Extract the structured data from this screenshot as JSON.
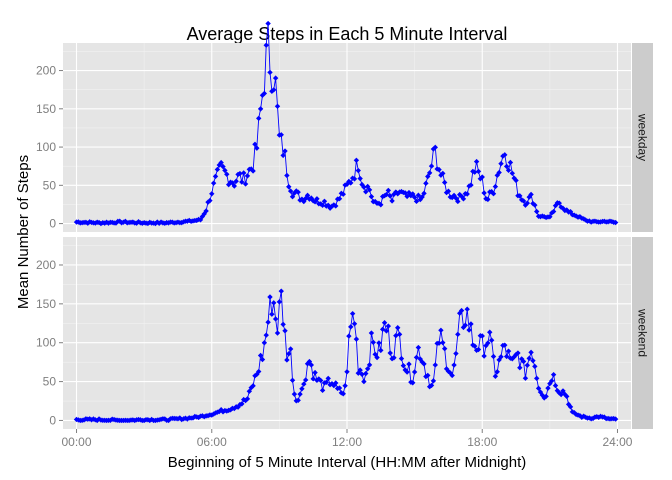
{
  "chart_data": {
    "type": "line",
    "title": "Average Steps in Each 5 Minute Interval",
    "xlabel": "Beginning of 5 Minute Interval (HH:MM after Midnight)",
    "ylabel": "Mean Number of Steps",
    "x_unit": "hours after midnight",
    "xlim": [
      -0.6,
      24.6
    ],
    "ylim": [
      -11,
      236
    ],
    "x_ticks": [
      0,
      6,
      12,
      18,
      24
    ],
    "x_tick_labels": [
      "00:00",
      "06:00",
      "12:00",
      "18:00",
      "24:00"
    ],
    "y_ticks": [
      0,
      50,
      100,
      150,
      200
    ],
    "y_tick_labels": [
      "0",
      "50",
      "100",
      "150",
      "200"
    ],
    "grid": true,
    "line_color": "#0000ff",
    "panel_color": "#e5e5e5",
    "strip_color": "#cccccc",
    "facet_position": "right",
    "panels": [
      {
        "name": "weekday",
        "label": "weekday",
        "keypoints": [
          [
            0,
            2
          ],
          [
            1,
            1
          ],
          [
            2,
            2
          ],
          [
            3,
            1
          ],
          [
            4,
            1
          ],
          [
            5,
            3
          ],
          [
            5.5,
            5
          ],
          [
            5.75,
            18
          ],
          [
            6,
            42
          ],
          [
            6.2,
            58
          ],
          [
            6.4,
            72
          ],
          [
            6.6,
            66
          ],
          [
            6.8,
            58
          ],
          [
            7.0,
            54
          ],
          [
            7.2,
            62
          ],
          [
            7.4,
            57
          ],
          [
            7.6,
            66
          ],
          [
            7.8,
            75
          ],
          [
            8.0,
            100
          ],
          [
            8.2,
            155
          ],
          [
            8.35,
            198
          ],
          [
            8.5,
            232
          ],
          [
            8.6,
            210
          ],
          [
            8.8,
            192
          ],
          [
            9.0,
            110
          ],
          [
            9.2,
            95
          ],
          [
            9.4,
            58
          ],
          [
            9.6,
            40
          ],
          [
            9.8,
            38
          ],
          [
            10,
            32
          ],
          [
            10.3,
            38
          ],
          [
            10.6,
            30
          ],
          [
            11.0,
            28
          ],
          [
            11.3,
            22
          ],
          [
            11.6,
            30
          ],
          [
            12.0,
            48
          ],
          [
            12.3,
            65
          ],
          [
            12.5,
            80
          ],
          [
            12.7,
            52
          ],
          [
            13.0,
            45
          ],
          [
            13.2,
            25
          ],
          [
            13.5,
            28
          ],
          [
            13.8,
            40
          ],
          [
            14.0,
            30
          ],
          [
            14.3,
            42
          ],
          [
            14.6,
            35
          ],
          [
            15.0,
            35
          ],
          [
            15.3,
            30
          ],
          [
            15.6,
            58
          ],
          [
            15.9,
            95
          ],
          [
            16.2,
            60
          ],
          [
            16.5,
            40
          ],
          [
            17.0,
            33
          ],
          [
            17.4,
            45
          ],
          [
            17.7,
            75
          ],
          [
            18.0,
            55
          ],
          [
            18.2,
            30
          ],
          [
            18.5,
            45
          ],
          [
            18.8,
            78
          ],
          [
            19.0,
            95
          ],
          [
            19.3,
            70
          ],
          [
            19.6,
            40
          ],
          [
            19.9,
            28
          ],
          [
            20.2,
            35
          ],
          [
            20.5,
            10
          ],
          [
            21.0,
            8
          ],
          [
            21.4,
            28
          ],
          [
            21.8,
            15
          ],
          [
            22.2,
            10
          ],
          [
            22.6,
            4
          ],
          [
            23.0,
            2
          ],
          [
            23.5,
            3
          ],
          [
            24,
            1
          ]
        ]
      },
      {
        "name": "weekend",
        "label": "weekend",
        "keypoints": [
          [
            0,
            1
          ],
          [
            1,
            1
          ],
          [
            2,
            0
          ],
          [
            3,
            1
          ],
          [
            4,
            1
          ],
          [
            5,
            3
          ],
          [
            5.5,
            5
          ],
          [
            6.0,
            8
          ],
          [
            6.4,
            12
          ],
          [
            6.8,
            15
          ],
          [
            7.2,
            20
          ],
          [
            7.6,
            28
          ],
          [
            8.0,
            60
          ],
          [
            8.3,
            90
          ],
          [
            8.5,
            128
          ],
          [
            8.7,
            162
          ],
          [
            8.9,
            120
          ],
          [
            9.1,
            160
          ],
          [
            9.3,
            90
          ],
          [
            9.5,
            85
          ],
          [
            9.7,
            25
          ],
          [
            10.0,
            38
          ],
          [
            10.3,
            80
          ],
          [
            10.6,
            55
          ],
          [
            11.0,
            42
          ],
          [
            11.3,
            52
          ],
          [
            11.6,
            38
          ],
          [
            11.9,
            35
          ],
          [
            12.1,
            105
          ],
          [
            12.3,
            143
          ],
          [
            12.5,
            70
          ],
          [
            12.8,
            55
          ],
          [
            13.1,
            100
          ],
          [
            13.4,
            85
          ],
          [
            13.7,
            125
          ],
          [
            14.0,
            90
          ],
          [
            14.3,
            110
          ],
          [
            14.6,
            70
          ],
          [
            14.9,
            55
          ],
          [
            15.2,
            95
          ],
          [
            15.5,
            65
          ],
          [
            15.8,
            40
          ],
          [
            16.1,
            110
          ],
          [
            16.4,
            80
          ],
          [
            16.7,
            55
          ],
          [
            17.0,
            120
          ],
          [
            17.3,
            140
          ],
          [
            17.6,
            100
          ],
          [
            18.0,
            95
          ],
          [
            18.3,
            108
          ],
          [
            18.6,
            60
          ],
          [
            19.0,
            95
          ],
          [
            19.3,
            70
          ],
          [
            19.6,
            85
          ],
          [
            19.9,
            60
          ],
          [
            20.2,
            95
          ],
          [
            20.5,
            45
          ],
          [
            20.8,
            30
          ],
          [
            21.1,
            60
          ],
          [
            21.4,
            40
          ],
          [
            21.7,
            35
          ],
          [
            22.0,
            10
          ],
          [
            22.4,
            5
          ],
          [
            22.8,
            3
          ],
          [
            23.2,
            5
          ],
          [
            23.6,
            2
          ],
          [
            24,
            1
          ]
        ]
      }
    ]
  }
}
